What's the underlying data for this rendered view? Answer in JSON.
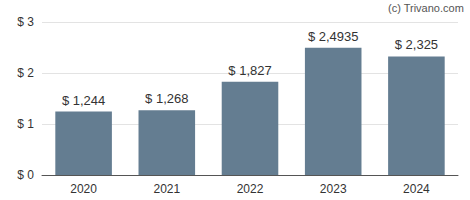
{
  "chart_data": {
    "type": "bar",
    "categories": [
      "2020",
      "2021",
      "2022",
      "2023",
      "2024"
    ],
    "values": [
      1.244,
      1.268,
      1.827,
      2.4935,
      2.325
    ],
    "value_labels": [
      "$ 1,244",
      "$ 1,268",
      "$ 1,827",
      "$ 2,4935",
      "$ 2,325"
    ],
    "data_labels": true,
    "color": "#647d91",
    "ylim": [
      0,
      3
    ],
    "yticks": [
      {
        "value": 0,
        "label": "$ 0"
      },
      {
        "value": 1,
        "label": "$ 1"
      },
      {
        "value": 2,
        "label": "$ 2"
      },
      {
        "value": 3,
        "label": "$ 3"
      }
    ],
    "grid": true,
    "annotation": "(c) Trivano.com"
  }
}
